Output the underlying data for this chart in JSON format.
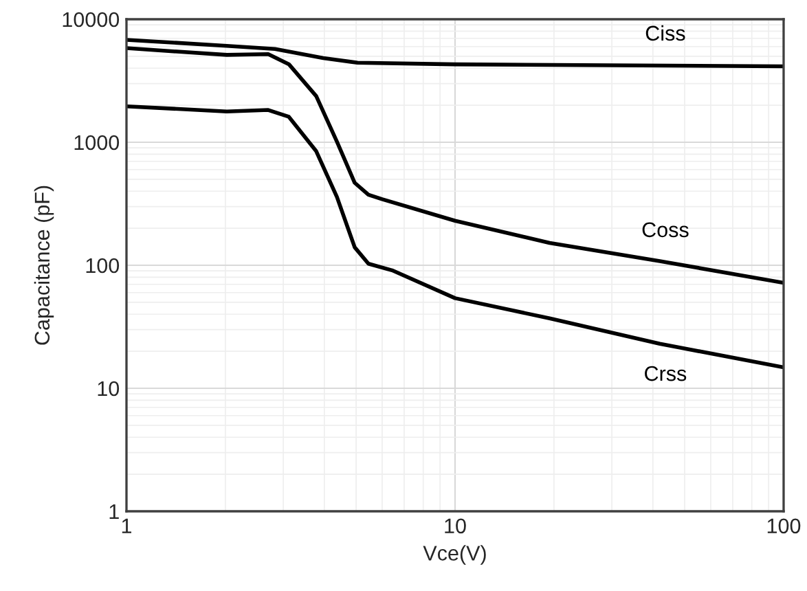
{
  "chart_data": {
    "type": "line",
    "xlabel": "Vce(V)",
    "ylabel": "Capacitance (pF)",
    "log": "xy",
    "grid": true,
    "marker": "none",
    "line_style": "solid",
    "xlim": [
      1,
      100
    ],
    "xticks": [
      1,
      10,
      100
    ],
    "ylim": [
      1,
      10000
    ],
    "yticks": [
      1,
      10,
      100,
      1000,
      10000
    ],
    "series": [
      {
        "name": "Ciss",
        "color": "#000000",
        "x": [
          1,
          2.02,
          2.83,
          3.97,
          5.05,
          10,
          100
        ],
        "values": [
          6800,
          6080,
          5730,
          4830,
          4430,
          4300,
          4140
        ]
      },
      {
        "name": "Coss",
        "color": "#000000",
        "x": [
          1,
          2.02,
          2.7,
          3.12,
          3.78,
          4.37,
          4.95,
          5.45,
          6.0,
          10,
          19.4,
          42,
          100
        ],
        "values": [
          5820,
          5130,
          5210,
          4310,
          2370,
          1010,
          468,
          374,
          344,
          230,
          152,
          108,
          72
        ]
      },
      {
        "name": "Crss",
        "color": "#000000",
        "x": [
          1,
          2.02,
          2.7,
          3.12,
          3.78,
          4.37,
          4.95,
          5.45,
          6.43,
          10,
          19.4,
          42,
          100
        ],
        "values": [
          1960,
          1780,
          1830,
          1610,
          845,
          359,
          140,
          103,
          91,
          54,
          37,
          23,
          14.8
        ]
      }
    ]
  }
}
